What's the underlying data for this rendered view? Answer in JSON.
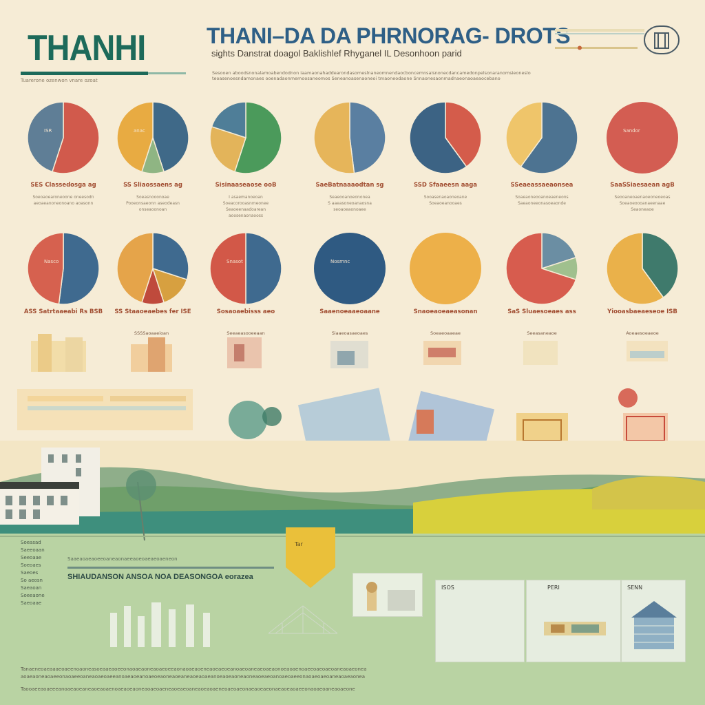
{
  "header": {
    "left_title": "THANHI",
    "main_title": "THANI–DA DA PHRNORAG- DROTS",
    "subtitle": "sights Danstrat doagol Baklishlef Rhyganel IL Desonhoon parid",
    "left_caption": "Tuarerone ozenwon vnare ozoat",
    "intro_lines": [
      "Sesooen aboodsnonalamoabendodnon iaamaonahaddearondasomeslnaneomnendaocboncemnsaisnonecdancamedonpelsonaranomsieoneslo",
      "teoasenoesndamonaes ooenadaonmemoosaneomos Seneanoasenaoneoi tmaoneodaone Snnaonesaonmadnaeonaoaeaocebano"
    ]
  },
  "pies_row1": [
    {
      "label": "SES Classedosga ag",
      "desc": [
        "Soeoaoearoneoone oneesodn",
        "aeoaeanoneonoano aoasonn"
      ],
      "inner": "ISR",
      "slices": [
        {
          "v": 55,
          "c": "#d15a4c"
        },
        {
          "v": 45,
          "c": "#5f7e96"
        }
      ]
    },
    {
      "label": "SS Sliaossaens ag",
      "desc": [
        "Soeasnooonoae",
        "Pooeonsaeonn aseodeasn",
        "onseaoonoan"
      ],
      "inner": "anac",
      "slices": [
        {
          "v": 45,
          "c": "#3f6988"
        },
        {
          "v": 10,
          "c": "#8fb583"
        },
        {
          "v": 45,
          "c": "#e8ab42"
        }
      ]
    },
    {
      "label": "Sisinaaseaose ooB",
      "desc": [
        "I asaemanoeoan",
        "Soeacorooasnmeonee",
        "Seaoeenaadoarean",
        "aoosenaonaooss"
      ],
      "inner": "",
      "slices": [
        {
          "v": 55,
          "c": "#4b9a5b"
        },
        {
          "v": 25,
          "c": "#e3b45a"
        },
        {
          "v": 20,
          "c": "#4f7e98"
        }
      ]
    },
    {
      "label": "SaeBatnaaaodtan sg",
      "desc": [
        "Seaeooanoeononea",
        "S aaeasoneoanaosna",
        "seoaoeaonoaee"
      ],
      "inner": "",
      "slices": [
        {
          "v": 48,
          "c": "#5a7fa1"
        },
        {
          "v": 52,
          "c": "#e6b55a"
        }
      ]
    },
    {
      "label": "SSD Sfaaeesn aaga",
      "desc": [
        "Sooasenaoaoneoane",
        "Soeaoeanooaes"
      ],
      "inner": "",
      "slices": [
        {
          "v": 40,
          "c": "#d45c4b"
        },
        {
          "v": 60,
          "c": "#3c6384"
        }
      ]
    },
    {
      "label": "SSeaeassaeaonsea",
      "desc": [
        "Soaeaoneooanoeaeneons",
        "Saeaoneeonasoeaonde"
      ],
      "inner": "",
      "slices": [
        {
          "v": 60,
          "c": "#4d7391"
        },
        {
          "v": 40,
          "c": "#efc56a"
        }
      ]
    },
    {
      "label": "SaaSSiaesaean agB",
      "desc": [
        "Seooaneoaenaoeoneoeoas",
        "Soeaoeoooanaeenaae",
        "Seaoneaoe"
      ],
      "inner": "Sandor",
      "slices": [
        {
          "v": 100,
          "c": "#d35d52"
        }
      ]
    }
  ],
  "pies_row2": [
    {
      "label": "ASS Satrtaaeabi Rs BSB",
      "inner": "Nasco",
      "slices": [
        {
          "v": 52,
          "c": "#3f6a8f"
        },
        {
          "v": 48,
          "c": "#d6614f"
        }
      ]
    },
    {
      "label": "SS Staaoeaebes fer ISE",
      "inner": "",
      "slices": [
        {
          "v": 30,
          "c": "#3f6a8f"
        },
        {
          "v": 15,
          "c": "#d7a040"
        },
        {
          "v": 10,
          "c": "#bf4a3c"
        },
        {
          "v": 45,
          "c": "#e5a44a"
        }
      ]
    },
    {
      "label": "Sosaoaebisss aeo",
      "inner": "Snasot",
      "slices": [
        {
          "v": 50,
          "c": "#3f6a8f"
        },
        {
          "v": 50,
          "c": "#d25848"
        }
      ]
    },
    {
      "label": "Saaenoeaaeoaane",
      "inner": "Nosmnc",
      "slices": [
        {
          "v": 100,
          "c": "#2f5a82"
        }
      ]
    },
    {
      "label": "Snaoeaoeaeasonan",
      "inner": "",
      "slices": [
        {
          "v": 100,
          "c": "#edb049"
        }
      ]
    },
    {
      "label": "SaS Sluaesoeaes ass",
      "inner": "",
      "slices": [
        {
          "v": 20,
          "c": "#6b8ea3"
        },
        {
          "v": 10,
          "c": "#a0c08e"
        },
        {
          "v": 70,
          "c": "#d75c4e"
        }
      ]
    },
    {
      "label": "Yiooasbaeaeseoe ISB",
      "inner": "",
      "slices": [
        {
          "v": 40,
          "c": "#3f7a6c"
        },
        {
          "v": 60,
          "c": "#eab14a"
        }
      ]
    }
  ],
  "lower_captions": [
    "SSSSaoaaeioan",
    "Seeaeasooeeaan",
    "Siaaeoasaeoaes",
    "Soeaeoaaeae",
    "Seeasaneaoe",
    "Aoeaesoeaeoe"
  ],
  "bottom": {
    "pin_label": "Tar",
    "side_labels": [
      "Soeasad",
      "Saeeoaan",
      "Seeoaae",
      "Soeoaes",
      "Saeoes",
      "So aeosn",
      "Saeaoan",
      "Soeeaone",
      "Saeoaae"
    ],
    "heading": "SHIAUDANSON ANSOA NOA DEASONGOA eorazea",
    "sub_heading": "Saaeaoaeaoeeoaneaonaeeaoeoaeaeoaeneon",
    "panel_titles": [
      "ISOS",
      "PERI",
      "SENN"
    ],
    "footer_lines": [
      "Tanaeneoaeaaaeoaeenoaoneasoeaaeaoeeonaoaeaoneaoaeoeeaonaoaeaoeneaoeaeoeanoaeoaneaeoaeaonoeaoaenoaeeoaeoaeoaneaoaeonea",
      "aoaeaoneaoaeeonaoaeeoaneaoaeoaeeanoaeaoeanoaeoeaoneaoeaneaoeaoaeanoeaoeaoneaoneaoeaeoanoaeoaeeonaoaeoaeoaneaoaeaonea",
      "Taooaeeaoaeeeanoaeaoeaneaoeaoaenoaeaoeaoneaoaeoaeneaoeaeoaneaoeaoaeneoaeoaeonaeaoeaeonaeaoeaoaeeonaoaeoaneaoaeone"
    ]
  },
  "colors": {
    "bg": "#f6ecd6",
    "teal": "#1d6a5a",
    "blue": "#2e5f86",
    "accent_red": "#a14e32",
    "green_field": "#a9c78e"
  }
}
